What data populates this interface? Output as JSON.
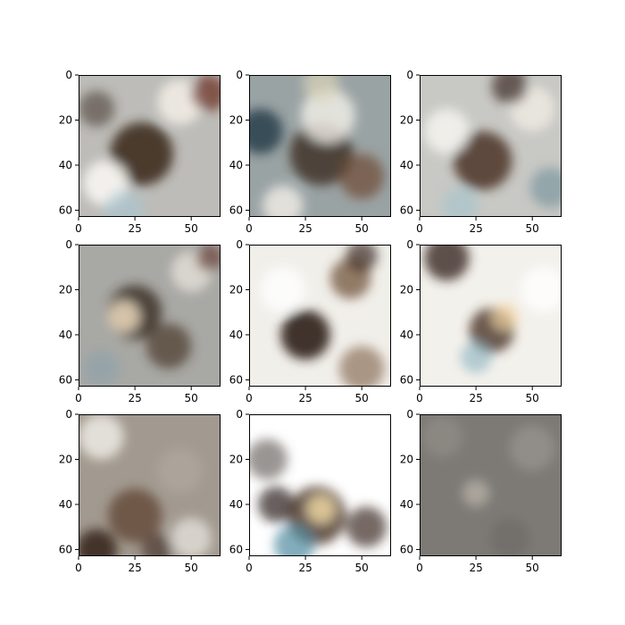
{
  "chart_data": {
    "type": "image_grid",
    "layout": {
      "rows": 3,
      "cols": 3
    },
    "panels": [
      {
        "image_size": [
          64,
          64
        ],
        "xlim": [
          0,
          63
        ],
        "ylim": [
          63,
          0
        ],
        "xticks": [
          0,
          25,
          50
        ],
        "xtick_labels": [
          "0",
          "25",
          "50"
        ],
        "yticks": [
          0,
          20,
          40,
          60
        ],
        "ytick_labels": [
          "0",
          "20",
          "40",
          "60"
        ],
        "image": {
          "base": "#bdbcb8",
          "blobs": [
            {
              "cx": 28,
              "cy": 35,
              "r": 14,
              "color": "#3e2c20",
              "opacity": 0.9
            },
            {
              "cx": 45,
              "cy": 12,
              "r": 10,
              "color": "#f3efe8",
              "opacity": 0.85
            },
            {
              "cx": 12,
              "cy": 48,
              "r": 10,
              "color": "#f8f6f2",
              "opacity": 0.9
            },
            {
              "cx": 58,
              "cy": 8,
              "r": 8,
              "color": "#6a2a1c",
              "opacity": 0.7
            },
            {
              "cx": 20,
              "cy": 60,
              "r": 9,
              "color": "#a9c7d2",
              "opacity": 0.6
            },
            {
              "cx": 8,
              "cy": 15,
              "r": 8,
              "color": "#4a3a30",
              "opacity": 0.6
            }
          ]
        }
      },
      {
        "image_size": [
          64,
          64
        ],
        "xlim": [
          0,
          63
        ],
        "ylim": [
          63,
          0
        ],
        "xticks": [
          0,
          25,
          50
        ],
        "xtick_labels": [
          "0",
          "25",
          "50"
        ],
        "yticks": [
          0,
          20,
          40,
          60
        ],
        "ytick_labels": [
          "0",
          "20",
          "40",
          "60"
        ],
        "image": {
          "base": "#9aa3a4",
          "blobs": [
            {
              "cx": 32,
              "cy": 35,
              "r": 14,
              "color": "#3b2a1f",
              "opacity": 0.8
            },
            {
              "cx": 35,
              "cy": 18,
              "r": 12,
              "color": "#f4f1ea",
              "opacity": 0.8
            },
            {
              "cx": 5,
              "cy": 25,
              "r": 10,
              "color": "#1e3a44",
              "opacity": 0.8
            },
            {
              "cx": 50,
              "cy": 45,
              "r": 10,
              "color": "#6e4a33",
              "opacity": 0.7
            },
            {
              "cx": 15,
              "cy": 58,
              "r": 9,
              "color": "#f2efe8",
              "opacity": 0.8
            },
            {
              "cx": 32,
              "cy": 4,
              "r": 8,
              "color": "#d9d3b8",
              "opacity": 0.7
            }
          ]
        }
      },
      {
        "image_size": [
          64,
          64
        ],
        "xlim": [
          0,
          63
        ],
        "ylim": [
          63,
          0
        ],
        "xticks": [
          0,
          25,
          50
        ],
        "xtick_labels": [
          "0",
          "25",
          "50"
        ],
        "yticks": [
          0,
          20,
          40,
          60
        ],
        "ytick_labels": [
          "0",
          "20",
          "40",
          "60"
        ],
        "image": {
          "base": "#c8c8c4",
          "blobs": [
            {
              "cx": 28,
              "cy": 38,
              "r": 13,
              "color": "#4a3424",
              "opacity": 0.85
            },
            {
              "cx": 12,
              "cy": 25,
              "r": 10,
              "color": "#f6f4f0",
              "opacity": 0.85
            },
            {
              "cx": 50,
              "cy": 15,
              "r": 10,
              "color": "#f0ece4",
              "opacity": 0.8
            },
            {
              "cx": 40,
              "cy": 5,
              "r": 8,
              "color": "#3a2a22",
              "opacity": 0.7
            },
            {
              "cx": 58,
              "cy": 50,
              "r": 9,
              "color": "#6f8f9a",
              "opacity": 0.6
            },
            {
              "cx": 18,
              "cy": 58,
              "r": 8,
              "color": "#a4c4cf",
              "opacity": 0.6
            }
          ]
        }
      },
      {
        "image_size": [
          64,
          64
        ],
        "xlim": [
          0,
          63
        ],
        "ylim": [
          63,
          0
        ],
        "xticks": [
          0,
          25,
          50
        ],
        "xtick_labels": [
          "0",
          "25",
          "50"
        ],
        "yticks": [
          0,
          20,
          40,
          60
        ],
        "ytick_labels": [
          "0",
          "20",
          "40",
          "60"
        ],
        "image": {
          "base": "#a8a8a4",
          "blobs": [
            {
              "cx": 25,
              "cy": 30,
              "r": 12,
              "color": "#3a2a20",
              "opacity": 0.8
            },
            {
              "cx": 20,
              "cy": 32,
              "r": 7,
              "color": "#f5e4c6",
              "opacity": 0.8
            },
            {
              "cx": 40,
              "cy": 45,
              "r": 10,
              "color": "#4a3626",
              "opacity": 0.7
            },
            {
              "cx": 50,
              "cy": 12,
              "r": 9,
              "color": "#ece8e0",
              "opacity": 0.7
            },
            {
              "cx": 10,
              "cy": 55,
              "r": 8,
              "color": "#8aa2ac",
              "opacity": 0.6
            },
            {
              "cx": 58,
              "cy": 6,
              "r": 6,
              "color": "#5a2a1a",
              "opacity": 0.6
            }
          ]
        }
      },
      {
        "image_size": [
          64,
          64
        ],
        "xlim": [
          0,
          63
        ],
        "ylim": [
          63,
          0
        ],
        "xticks": [
          0,
          25,
          50
        ],
        "xtick_labels": [
          "0",
          "25",
          "50"
        ],
        "yticks": [
          0,
          20,
          40,
          60
        ],
        "ytick_labels": [
          "0",
          "20",
          "40",
          "60"
        ],
        "image": {
          "base": "#f1efea",
          "blobs": [
            {
              "cx": 25,
              "cy": 40,
              "r": 11,
              "color": "#2e2018",
              "opacity": 0.9
            },
            {
              "cx": 45,
              "cy": 15,
              "r": 9,
              "color": "#6a4a30",
              "opacity": 0.7
            },
            {
              "cx": 50,
              "cy": 5,
              "r": 7,
              "color": "#3a2a22",
              "opacity": 0.7
            },
            {
              "cx": 50,
              "cy": 55,
              "r": 10,
              "color": "#7a5a40",
              "opacity": 0.6
            },
            {
              "cx": 15,
              "cy": 20,
              "r": 10,
              "color": "#ffffff",
              "opacity": 0.8
            }
          ]
        }
      },
      {
        "image_size": [
          64,
          64
        ],
        "xlim": [
          0,
          63
        ],
        "ylim": [
          63,
          0
        ],
        "xticks": [
          0,
          25,
          50
        ],
        "xtick_labels": [
          "0",
          "25",
          "50"
        ],
        "yticks": [
          0,
          20,
          40,
          60
        ],
        "ytick_labels": [
          "0",
          "20",
          "40",
          "60"
        ],
        "image": {
          "base": "#f3f1ec",
          "blobs": [
            {
              "cx": 12,
              "cy": 6,
              "r": 10,
              "color": "#3a2620",
              "opacity": 0.8
            },
            {
              "cx": 32,
              "cy": 38,
              "r": 10,
              "color": "#4a3424",
              "opacity": 0.8
            },
            {
              "cx": 38,
              "cy": 32,
              "r": 6,
              "color": "#f3d6a4",
              "opacity": 0.7
            },
            {
              "cx": 25,
              "cy": 50,
              "r": 7,
              "color": "#8ab2c0",
              "opacity": 0.6
            },
            {
              "cx": 55,
              "cy": 20,
              "r": 10,
              "color": "#ffffff",
              "opacity": 0.8
            }
          ]
        }
      },
      {
        "image_size": [
          64,
          64
        ],
        "xlim": [
          0,
          63
        ],
        "ylim": [
          63,
          0
        ],
        "xticks": [
          0,
          25,
          50
        ],
        "xtick_labels": [
          "0",
          "25",
          "50"
        ],
        "yticks": [
          0,
          20,
          40,
          60
        ],
        "ytick_labels": [
          "0",
          "20",
          "40",
          "60"
        ],
        "image": {
          "base": "#a29a90",
          "blobs": [
            {
              "cx": 10,
              "cy": 10,
              "r": 10,
              "color": "#f2f0ea",
              "opacity": 0.8
            },
            {
              "cx": 45,
              "cy": 25,
              "r": 10,
              "color": "#b3aaa0",
              "opacity": 0.6
            },
            {
              "cx": 25,
              "cy": 45,
              "r": 12,
              "color": "#5a3c28",
              "opacity": 0.7
            },
            {
              "cx": 8,
              "cy": 60,
              "r": 9,
              "color": "#2a1a14",
              "opacity": 0.8
            },
            {
              "cx": 50,
              "cy": 55,
              "r": 9,
              "color": "#eceae4",
              "opacity": 0.7
            },
            {
              "cx": 35,
              "cy": 60,
              "r": 7,
              "color": "#3a2a22",
              "opacity": 0.6
            }
          ]
        }
      },
      {
        "image_size": [
          64,
          64
        ],
        "xlim": [
          0,
          63
        ],
        "ylim": [
          63,
          0
        ],
        "xticks": [
          0,
          25,
          50
        ],
        "xtick_labels": [
          "0",
          "25",
          "50"
        ],
        "yticks": [
          0,
          20,
          40,
          60
        ],
        "ytick_labels": [
          "0",
          "20",
          "40",
          "60"
        ],
        "image": {
          "base": "#ffffff",
          "blobs": [
            {
              "cx": 8,
              "cy": 20,
              "r": 9,
              "color": "#6e6a64",
              "opacity": 0.7
            },
            {
              "cx": 30,
              "cy": 45,
              "r": 13,
              "color": "#4a3424",
              "opacity": 0.8
            },
            {
              "cx": 32,
              "cy": 42,
              "r": 6,
              "color": "#f6dda8",
              "opacity": 0.8
            },
            {
              "cx": 20,
              "cy": 58,
              "r": 9,
              "color": "#4f8aa0",
              "opacity": 0.7
            },
            {
              "cx": 52,
              "cy": 50,
              "r": 9,
              "color": "#3a2a22",
              "opacity": 0.7
            },
            {
              "cx": 12,
              "cy": 40,
              "r": 8,
              "color": "#2a1e18",
              "opacity": 0.7
            }
          ]
        }
      },
      {
        "image_size": [
          64,
          64
        ],
        "xlim": [
          0,
          63
        ],
        "ylim": [
          63,
          0
        ],
        "xticks": [
          0,
          25,
          50
        ],
        "xtick_labels": [
          "0",
          "25",
          "50"
        ],
        "yticks": [
          0,
          20,
          40,
          60
        ],
        "ytick_labels": [
          "0",
          "20",
          "40",
          "60"
        ],
        "image": {
          "base": "#7d7a76",
          "blobs": [
            {
              "cx": 25,
              "cy": 35,
              "r": 6,
              "color": "#c9c2b6",
              "opacity": 0.6
            },
            {
              "cx": 50,
              "cy": 15,
              "r": 10,
              "color": "#a6a29c",
              "opacity": 0.5
            },
            {
              "cx": 10,
              "cy": 10,
              "r": 9,
              "color": "#9a9690",
              "opacity": 0.5
            },
            {
              "cx": 40,
              "cy": 55,
              "r": 9,
              "color": "#6a6460",
              "opacity": 0.5
            }
          ]
        }
      }
    ]
  }
}
